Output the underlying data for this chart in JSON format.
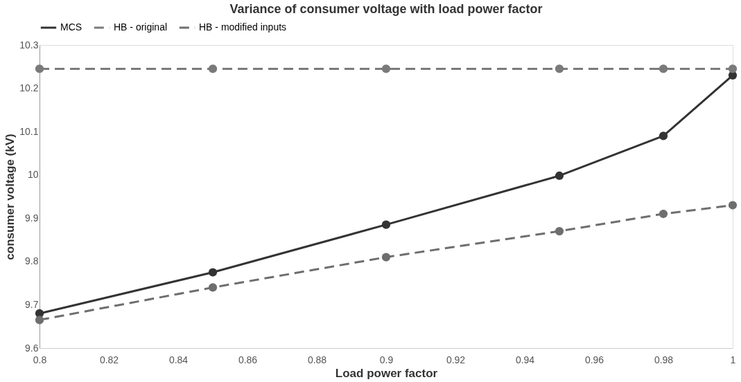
{
  "chart_data": {
    "type": "line",
    "title": "Variance of consumer voltage with load power factor",
    "xlabel": "Load power factor",
    "ylabel": "consumer voltage (kV)",
    "x": [
      0.8,
      0.85,
      0.9,
      0.95,
      0.98,
      1
    ],
    "series": [
      {
        "name": "MCS",
        "color": "#333333",
        "values": [
          9.68,
          9.775,
          9.885,
          9.998,
          10.09,
          10.23
        ],
        "line_style": "solid"
      },
      {
        "name": "HB - original",
        "color": "#7a7a7a",
        "values": [
          10.245,
          10.245,
          10.245,
          10.245,
          10.245,
          10.245
        ],
        "line_style": "dashed"
      },
      {
        "name": "HB - modified inputs",
        "color": "#6e6e6e",
        "values": [
          9.665,
          9.74,
          9.81,
          9.87,
          9.91,
          9.93
        ],
        "line_style": "dashed"
      }
    ],
    "xlim": [
      0.8,
      1
    ],
    "xticks": [
      0.8,
      0.82,
      0.84,
      0.86,
      0.88,
      0.9,
      0.92,
      0.94,
      0.96,
      0.98,
      1
    ],
    "ylim": [
      9.6,
      10.3
    ],
    "yticks": [
      9.6,
      9.7,
      9.8,
      9.9,
      10,
      10.1,
      10.2,
      10.3
    ],
    "grid": false,
    "legend": "top",
    "marker": "circle"
  }
}
